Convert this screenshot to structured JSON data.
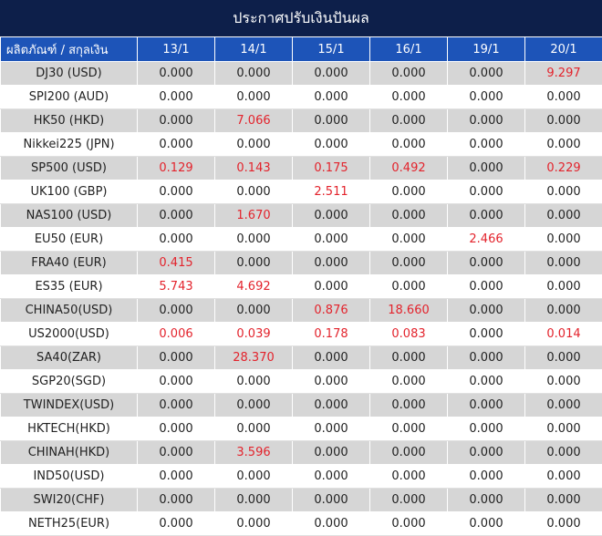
{
  "title": "ประกาศปรับเงินปันผล",
  "header": {
    "product_label": "ผลิตภัณฑ์ / สกุลเงิน",
    "dates": [
      "13/1",
      "14/1",
      "15/1",
      "16/1",
      "19/1",
      "20/1"
    ]
  },
  "colors": {
    "title_bg": "#0d1f4a",
    "header_bg": "#1d54b8",
    "highlight": "#e3232c",
    "alt_row": "#d6d6d6"
  },
  "rows": [
    {
      "product": "DJ30 (USD)",
      "values": [
        "0.000",
        "0.000",
        "0.000",
        "0.000",
        "0.000",
        "9.297"
      ]
    },
    {
      "product": "SPI200 (AUD)",
      "values": [
        "0.000",
        "0.000",
        "0.000",
        "0.000",
        "0.000",
        "0.000"
      ]
    },
    {
      "product": "HK50 (HKD)",
      "values": [
        "0.000",
        "7.066",
        "0.000",
        "0.000",
        "0.000",
        "0.000"
      ]
    },
    {
      "product": "Nikkei225 (JPN)",
      "values": [
        "0.000",
        "0.000",
        "0.000",
        "0.000",
        "0.000",
        "0.000"
      ]
    },
    {
      "product": "SP500 (USD)",
      "values": [
        "0.129",
        "0.143",
        "0.175",
        "0.492",
        "0.000",
        "0.229"
      ]
    },
    {
      "product": "UK100 (GBP)",
      "values": [
        "0.000",
        "0.000",
        "2.511",
        "0.000",
        "0.000",
        "0.000"
      ]
    },
    {
      "product": "NAS100 (USD)",
      "values": [
        "0.000",
        "1.670",
        "0.000",
        "0.000",
        "0.000",
        "0.000"
      ]
    },
    {
      "product": "EU50 (EUR)",
      "values": [
        "0.000",
        "0.000",
        "0.000",
        "0.000",
        "2.466",
        "0.000"
      ]
    },
    {
      "product": "FRA40 (EUR)",
      "values": [
        "0.415",
        "0.000",
        "0.000",
        "0.000",
        "0.000",
        "0.000"
      ]
    },
    {
      "product": "ES35 (EUR)",
      "values": [
        "5.743",
        "4.692",
        "0.000",
        "0.000",
        "0.000",
        "0.000"
      ]
    },
    {
      "product": "CHINA50(USD)",
      "values": [
        "0.000",
        "0.000",
        "0.876",
        "18.660",
        "0.000",
        "0.000"
      ]
    },
    {
      "product": "US2000(USD)",
      "values": [
        "0.006",
        "0.039",
        "0.178",
        "0.083",
        "0.000",
        "0.014"
      ]
    },
    {
      "product": "SA40(ZAR)",
      "values": [
        "0.000",
        "28.370",
        "0.000",
        "0.000",
        "0.000",
        "0.000"
      ]
    },
    {
      "product": "SGP20(SGD)",
      "values": [
        "0.000",
        "0.000",
        "0.000",
        "0.000",
        "0.000",
        "0.000"
      ]
    },
    {
      "product": "TWINDEX(USD)",
      "values": [
        "0.000",
        "0.000",
        "0.000",
        "0.000",
        "0.000",
        "0.000"
      ]
    },
    {
      "product": "HKTECH(HKD)",
      "values": [
        "0.000",
        "0.000",
        "0.000",
        "0.000",
        "0.000",
        "0.000"
      ]
    },
    {
      "product": "CHINAH(HKD)",
      "values": [
        "0.000",
        "3.596",
        "0.000",
        "0.000",
        "0.000",
        "0.000"
      ]
    },
    {
      "product": "IND50(USD)",
      "values": [
        "0.000",
        "0.000",
        "0.000",
        "0.000",
        "0.000",
        "0.000"
      ]
    },
    {
      "product": "SWI20(CHF)",
      "values": [
        "0.000",
        "0.000",
        "0.000",
        "0.000",
        "0.000",
        "0.000"
      ]
    },
    {
      "product": "NETH25(EUR)",
      "values": [
        "0.000",
        "0.000",
        "0.000",
        "0.000",
        "0.000",
        "0.000"
      ]
    }
  ]
}
